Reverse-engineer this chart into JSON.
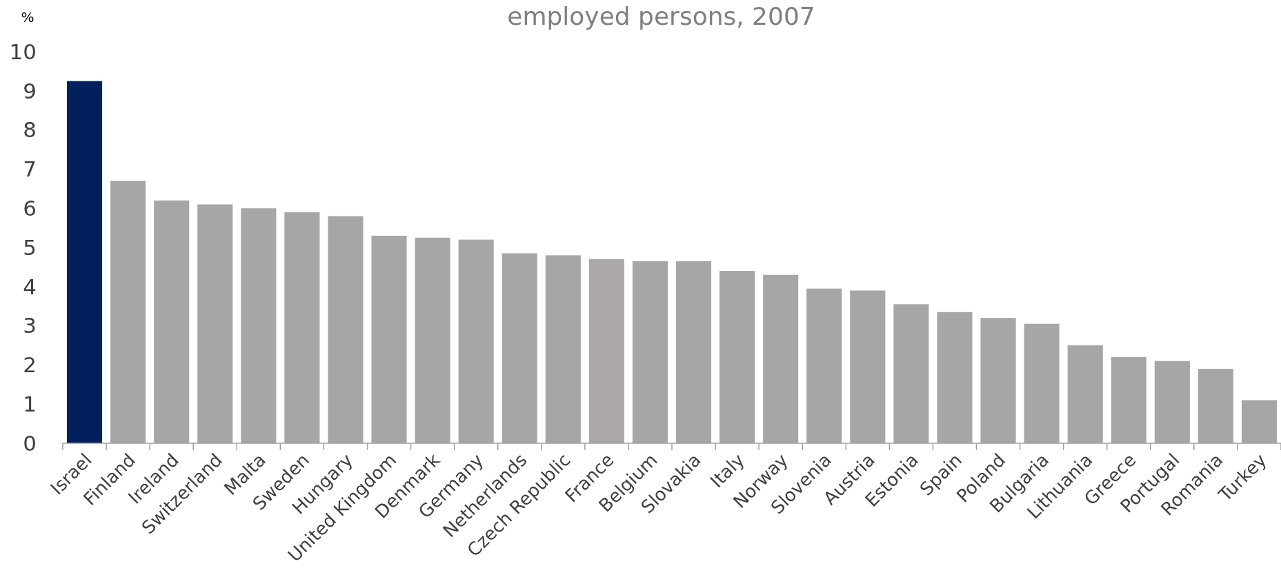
{
  "chart_data": {
    "type": "bar",
    "title": "employed persons, 2007",
    "ylabel": "%",
    "categories": [
      "Israel",
      "Finland",
      "Ireland",
      "Switzerland",
      "Malta",
      "Sweden",
      "Hungary",
      "United Kingdom",
      "Denmark",
      "Germany",
      "Netherlands",
      "Czech Republic",
      "France",
      "Belgium",
      "Slovakia",
      "Italy",
      "Norway",
      "Slovenia",
      "Austria",
      "Estonia",
      "Spain",
      "Poland",
      "Bulgaria",
      "Lithuania",
      "Greece",
      "Portugal",
      "Romania",
      "Turkey"
    ],
    "values": [
      9.25,
      6.7,
      6.2,
      6.1,
      6.0,
      5.9,
      5.8,
      5.3,
      5.25,
      5.2,
      4.85,
      4.8,
      4.7,
      4.65,
      4.65,
      4.4,
      4.3,
      3.95,
      3.9,
      3.55,
      3.35,
      3.2,
      3.05,
      2.5,
      2.2,
      2.1,
      1.9,
      1.1
    ],
    "colors": [
      "#001f5b",
      "#a6a6a6",
      "#a6a6a6",
      "#a6a6a6",
      "#a6a6a6",
      "#a6a6a6",
      "#a6a6a6",
      "#a6a6a6",
      "#a6a6a6",
      "#a6a6a6",
      "#a6a6a6",
      "#a6a6a6",
      "#aba7a6",
      "#a6a6a6",
      "#a6a6a6",
      "#a6a6a6",
      "#a6a6a6",
      "#a6a6a6",
      "#a6a6a6",
      "#a6a6a6",
      "#a6a6a6",
      "#a6a6a6",
      "#a6a6a6",
      "#a6a6a6",
      "#a6a6a6",
      "#a6a6a6",
      "#a6a6a6",
      "#a6a6a6"
    ],
    "ylim": [
      0,
      10
    ],
    "yticks": [
      0,
      1,
      2,
      3,
      4,
      5,
      6,
      7,
      8,
      9,
      10
    ],
    "grid": false
  }
}
